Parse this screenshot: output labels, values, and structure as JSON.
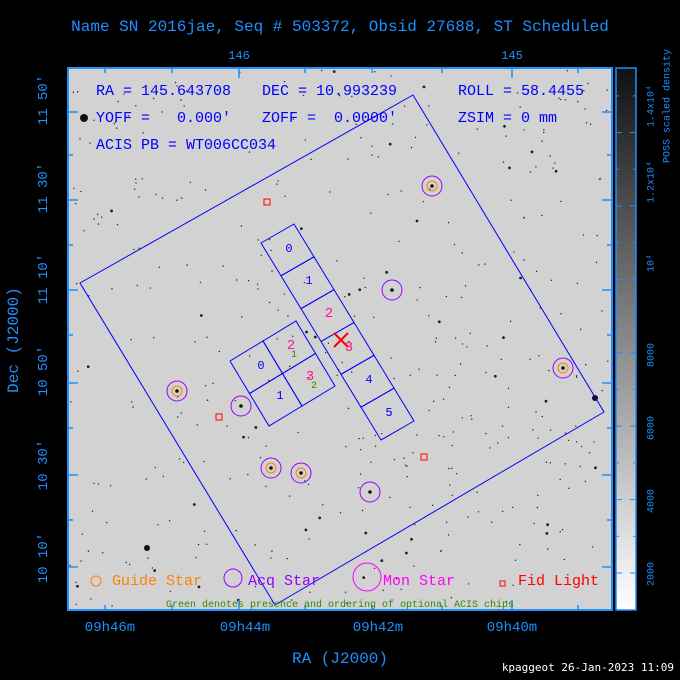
{
  "title": "Name SN 2016jae, Seq # 503372, Obsid 27688, ST Scheduled",
  "info": {
    "ra": "RA = 145.643708",
    "dec": "DEC = 10.993239",
    "roll": "ROLL = 58.4455",
    "yoff": "YOFF =   0.000'",
    "zoff": "ZOFF =  0.0000'",
    "zsim": "ZSIM = 0 mm",
    "acis_pb": "ACIS PB = WT006CC034"
  },
  "top_axis": {
    "ticks": [
      "146",
      "145"
    ]
  },
  "bottom_axis": {
    "ticks": [
      "09h46m",
      "09h44m",
      "09h42m",
      "09h40m"
    ],
    "label": "RA (J2000)"
  },
  "left_axis": {
    "ticks": [
      "11 50'",
      "11 30'",
      "11 10'",
      "10 50'",
      "10 30'",
      "10 10'"
    ],
    "label": "Dec (J2000)"
  },
  "colorbar": {
    "ticks": [
      "2000",
      "4000",
      "6000",
      "8000",
      "10⁴",
      "1.2x10⁴",
      "1.4x10⁴"
    ],
    "label": "POSS scaled density"
  },
  "legend": {
    "guide": "Guide Star",
    "acq": "Acq Star",
    "mon": "Mon Star",
    "fid": "Fid Light",
    "note": "Green denotes presence and ordering of optional ACIS chips"
  },
  "chips": {
    "s_labels": [
      "0",
      "1",
      "2",
      "3",
      "4",
      "5"
    ],
    "i_labels": [
      "0",
      "1",
      "2",
      "3"
    ],
    "optional_green": [
      "1",
      "2"
    ]
  },
  "colors": {
    "axis": "#1e90ff",
    "fov": "#0000ff",
    "guide": "#ff8000",
    "acq": "#9400ff",
    "mon": "#ff00ff",
    "fid": "#ff0000",
    "selected_chip": "#ff1493",
    "optional": "#2e8b00",
    "sky": "#d2d2d2"
  },
  "footer": "kpaggeot 26-Jan-2023 11:09"
}
